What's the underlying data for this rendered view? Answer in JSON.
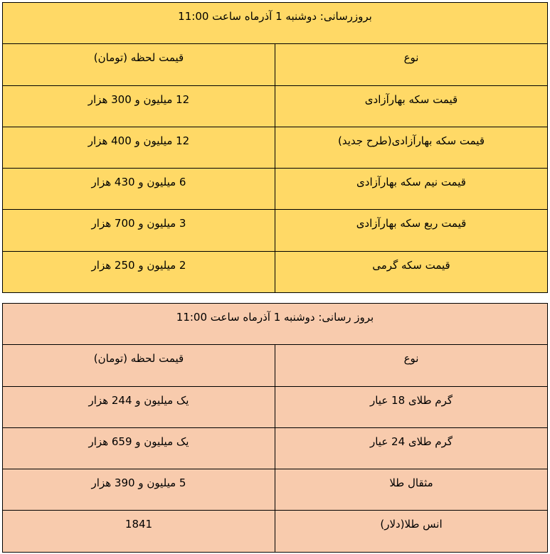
{
  "coin_table": {
    "update": "بروزرسانی:  دوشنبه 1 آذرماه ساعت 11:00",
    "headers": [
      "نوع",
      "قیمت لحظه (تومان)"
    ],
    "rows": [
      [
        "قیمت سکه بهارآزادی",
        "12 میلیون و 300  هزار"
      ],
      [
        "قیمت سکه بهارآزادی(طرح جدید)",
        "12 میلیون و 400  هزار"
      ],
      [
        "قیمت نیم سکه بهارآزادی",
        "6 میلیون و 430 هزار"
      ],
      [
        "قیمت ربع سکه بهارآزادی",
        "3  میلیون و 700  هزار"
      ],
      [
        "قیمت سکه گرمی",
        "2 میلیون و 250  هزار"
      ]
    ],
    "background": "#ffd966"
  },
  "gold_table": {
    "update": "بروز رسانی: دوشنبه 1 آذرماه ساعت 11:00",
    "headers": [
      "نوع",
      "قیمت لحظه (تومان)"
    ],
    "rows": [
      [
        "گرم طلای 18 عیار",
        "یک میلیون و 244  هزار"
      ],
      [
        "گرم طلای 24 عیار",
        "یک میلیون و 659  هزار"
      ],
      [
        "مثقال طلا",
        "5  میلیون و 390  هزار"
      ],
      [
        "انس طلا(دلار)",
        "1841"
      ]
    ],
    "background": "#f8cbad"
  }
}
